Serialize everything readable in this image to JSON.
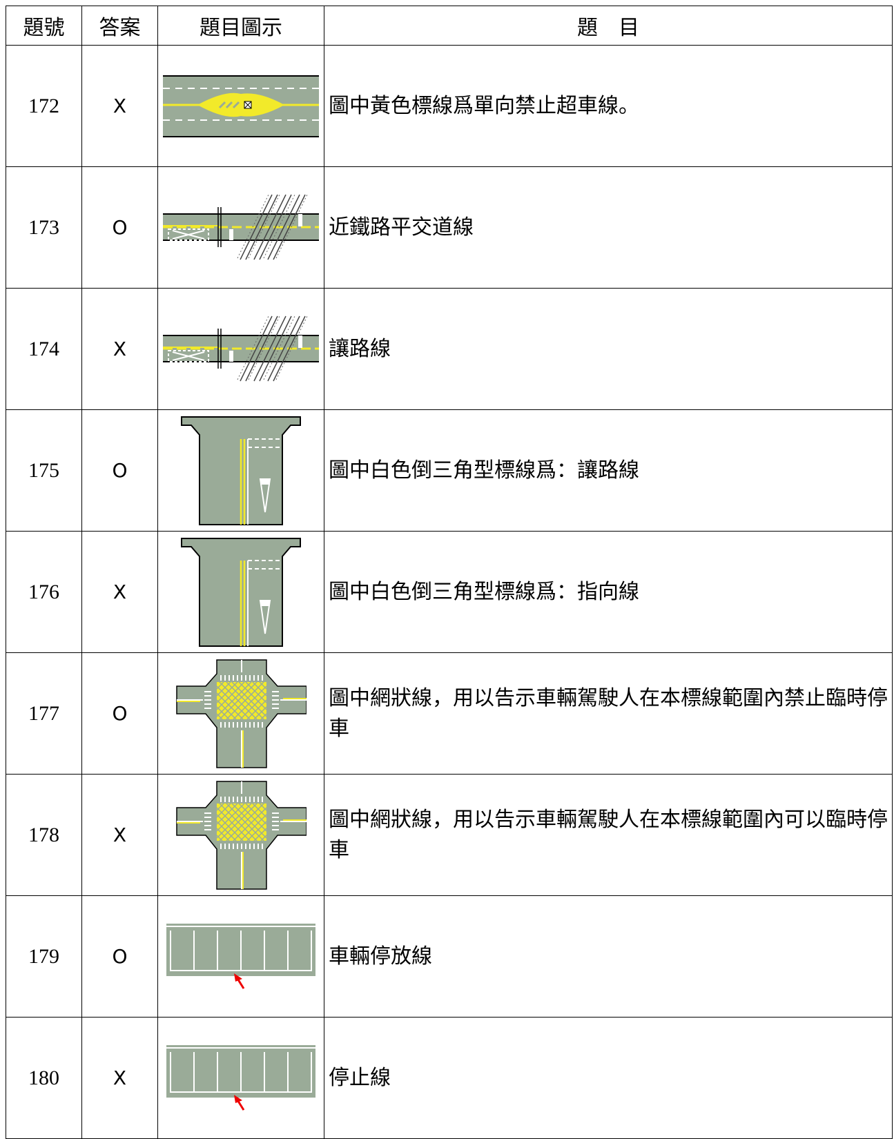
{
  "table": {
    "header": [
      "題號",
      "答案",
      "題目圖示",
      "題　目"
    ],
    "rows": [
      [
        172,
        "X",
        "圖中黃色標線爲單向禁止超車線。"
      ],
      [
        173,
        "O",
        "近鐵路平交道線"
      ],
      [
        174,
        "X",
        "讓路線"
      ],
      [
        175,
        "O",
        "圖中白色倒三角型標線爲：讓路線"
      ],
      [
        176,
        "X",
        "圖中白色倒三角型標線爲：指向線"
      ],
      [
        177,
        "O",
        "圖中網狀線，用以告示車輛駕駛人在本標線範圍內禁止臨時停車"
      ],
      [
        178,
        "X",
        "圖中網狀線，用以告示車輛駕駛人在本標線範圍內可以臨時停車"
      ],
      [
        179,
        "O",
        "車輛停放線"
      ],
      [
        180,
        "X",
        "停止線"
      ]
    ]
  }
}
